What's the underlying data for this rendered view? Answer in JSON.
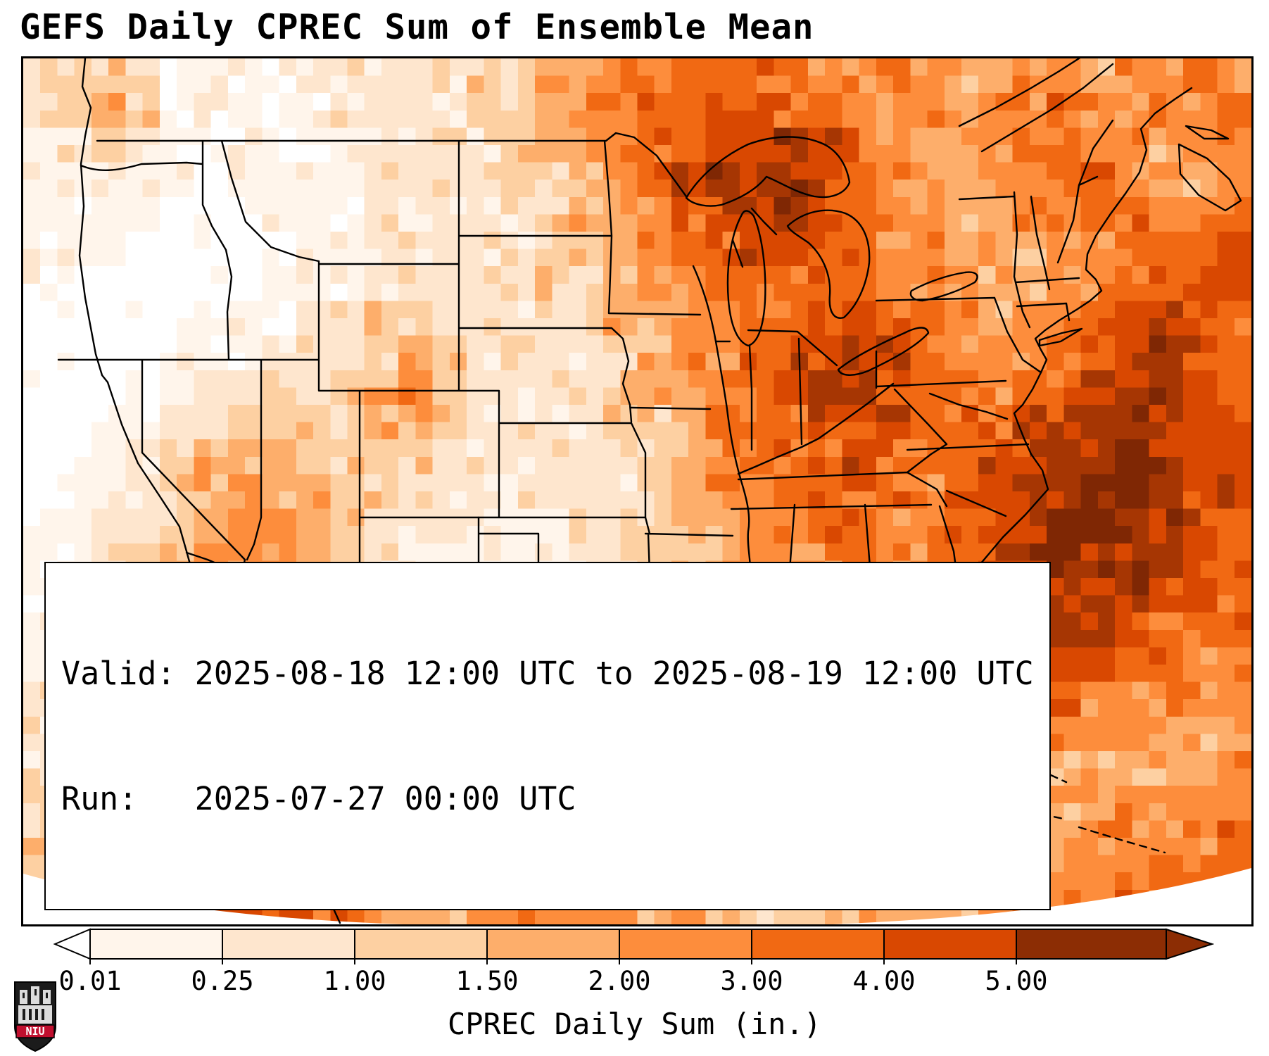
{
  "title": "GEFS Daily CPREC Sum of Ensemble Mean",
  "info_box": {
    "line1": "Valid: 2025-08-18 12:00 UTC to 2025-08-19 12:00 UTC",
    "line2": "Run:   2025-07-27 00:00 UTC"
  },
  "colorbar": {
    "label": "CPREC Daily Sum (in.)",
    "ticks": [
      "0.01",
      "0.25",
      "1.00",
      "1.50",
      "2.00",
      "3.00",
      "4.00",
      "5.00"
    ],
    "segment_colors": [
      "#fff5eb",
      "#fee6ce",
      "#fdd0a2",
      "#fdae6b",
      "#fd8d3c",
      "#f16913",
      "#d94801"
    ],
    "under_color": "#ffffff",
    "over_color": "#8c2d04"
  },
  "logo": {
    "text": "NIU"
  },
  "map_data": {
    "type": "heatmap",
    "variable": "CPREC Daily Sum",
    "units": "in.",
    "levels": [
      0.01,
      0.25,
      1.0,
      1.5,
      2.0,
      3.0,
      4.0,
      5.0
    ],
    "palette": [
      "#ffffff",
      "#fff5eb",
      "#fee6ce",
      "#fdd0a2",
      "#fdae6b",
      "#fd8d3c",
      "#f16913",
      "#d94801",
      "#a63603",
      "#7f2704"
    ],
    "grid_cols": 36,
    "grid_rows_count": 25,
    "grid_rows": [
      "233211112222233445566665565445545565",
      "234311111222233455667766555455654556",
      "123211111122223445667787654456655455",
      "112110111122223345678887654455665445",
      "111100011122222344567787655445566556",
      "111000001122222334566776655444556667",
      "100000011122222334556666655544556677",
      "000001112233222234455667766545567776",
      "000011122234322223455677876555667876",
      "000112222345322223445678876656678876",
      "001122333344322223345667776667788877",
      "001234443333222222345666766677889877",
      "011234544332222222345566665678899877",
      "112234554322211122344556655678998876",
      "112345554321111122334555655678988876",
      "122345665421111112234455556678888776",
      "123345676421111112233455566678877666",
      "123445787532111222233445556667776655",
      "223456898642222223344445556666655555",
      "234457998643222233445544556655555444",
      "234568998753223334455444455555444445",
      "334568988754333344554443445554445555",
      "345578887654334445544433444444455556",
      "345678877654444455444334444445555666",
      "245677776654445555443334444455556666"
    ]
  }
}
